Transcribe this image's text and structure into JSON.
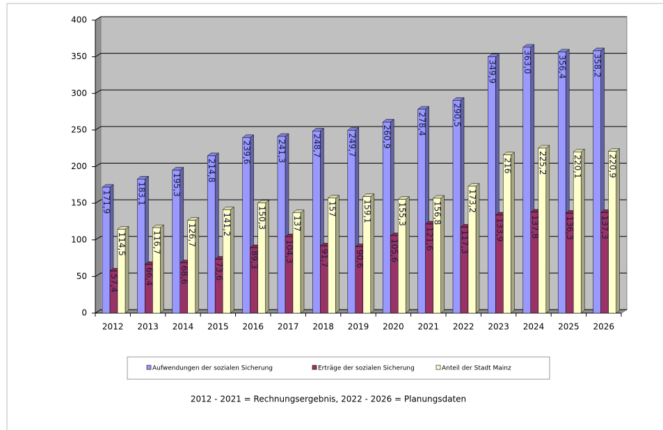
{
  "chart_data": {
    "type": "bar3d",
    "categories": [
      "2012",
      "2013",
      "2014",
      "2015",
      "2016",
      "2017",
      "2018",
      "2019",
      "2020",
      "2021",
      "2022",
      "2023",
      "2024",
      "2025",
      "2026"
    ],
    "series": [
      {
        "name": "Aufwendungen der sozialen Sicherung",
        "color": "#9999ff",
        "values": [
          171.9,
          183.1,
          195.3,
          214.8,
          239.6,
          241.3,
          248.7,
          249.7,
          260.9,
          278.4,
          290.5,
          349.9,
          363.0,
          356.4,
          358.2
        ],
        "value_labels": [
          "171,9",
          "183,1",
          "195,3",
          "214,8",
          "239,6",
          "241,3",
          "248,7",
          "249,7",
          "260,9",
          "278,4",
          "290,5",
          "349,9",
          "363,0",
          "356,4",
          "358,2"
        ]
      },
      {
        "name": "Erträge der sozialen Sicherung",
        "color": "#993366",
        "values": [
          57.4,
          66.4,
          68.6,
          73.6,
          89.3,
          104.3,
          91.7,
          90.6,
          105.6,
          121.6,
          117.3,
          133.9,
          137.8,
          136.3,
          137.3
        ],
        "value_labels": [
          "57,4",
          "66,4",
          "68,6",
          "73,6",
          "89,3",
          "104,3",
          "91,7",
          "90,6",
          "105,6",
          "121,6",
          "117,3",
          "133,9",
          "137,8",
          "136,3",
          "137,3"
        ]
      },
      {
        "name": "Anteil der Stadt Mainz",
        "color": "#ffffcc",
        "values": [
          114.5,
          116.7,
          126.7,
          141.2,
          150.3,
          137,
          157,
          159.1,
          155.3,
          156.8,
          173.2,
          216,
          225.2,
          220.1,
          220.9
        ],
        "value_labels": [
          "114,5",
          "116,7",
          "126,7",
          "141,2",
          "150,3",
          "137",
          "157",
          "159,1",
          "155,3",
          "156,8",
          "173,2",
          "216",
          "225,2",
          "220,1",
          "220,9"
        ]
      }
    ],
    "ylim": [
      0,
      400
    ],
    "yticks": [
      0,
      50,
      100,
      150,
      200,
      250,
      300,
      350,
      400
    ],
    "grid": true,
    "footnote": "2012 - 2021 = Rechnungsergebnis, 2022 - 2026 = Planungsdaten"
  }
}
